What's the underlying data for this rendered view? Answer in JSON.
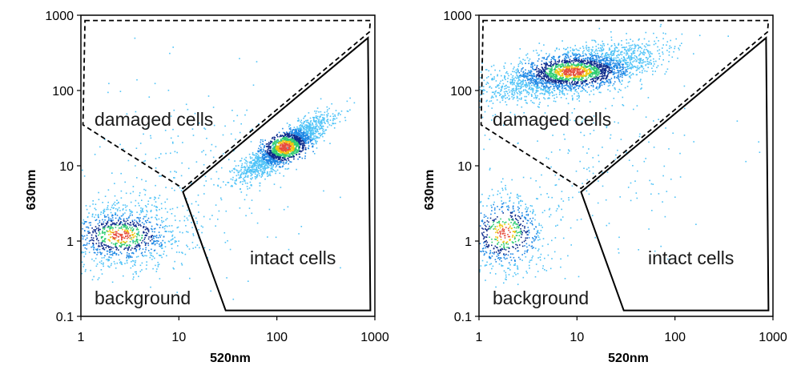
{
  "chart_data": [
    {
      "type": "scatter",
      "subtype": "density-dot-plot",
      "title": "",
      "xlabel": "520nm",
      "ylabel": "630nm",
      "xscale": "log",
      "yscale": "log",
      "xlim": [
        1,
        1000
      ],
      "ylim": [
        0.1,
        1000
      ],
      "xticks": [
        "1",
        "10",
        "100",
        "1000"
      ],
      "yticks": [
        "0.1",
        "1",
        "10",
        "100",
        "1000"
      ],
      "density_colors": [
        "#4fc3f7",
        "#1e88e5",
        "#0d2b8c",
        "#2ecc71",
        "#f1c40f",
        "#e74c3c"
      ],
      "clusters": [
        {
          "name": "intact cells population",
          "center": [
            120,
            18
          ],
          "spread_log10": [
            0.22,
            0.2
          ],
          "correlation": 0.85,
          "count": 2000
        },
        {
          "name": "background population",
          "center": [
            2.5,
            1.2
          ],
          "spread_log10": [
            0.35,
            0.22
          ],
          "correlation": 0.0,
          "count": 1100
        },
        {
          "name": "sparse scatter",
          "center": [
            12,
            8
          ],
          "spread_log10": [
            0.6,
            0.6
          ],
          "correlation": 0.0,
          "count": 260
        }
      ],
      "gates": [
        {
          "label": "damaged cells",
          "style": "dashed",
          "vertices": [
            [
              1.1,
              850
            ],
            [
              900,
              850
            ],
            [
              880,
              600
            ],
            [
              11,
              5
            ],
            [
              1.05,
              35
            ]
          ]
        },
        {
          "label": "intact cells",
          "style": "solid",
          "vertices": [
            [
              11,
              4.5
            ],
            [
              850,
              500
            ],
            [
              900,
              0.12
            ],
            [
              30,
              0.12
            ]
          ]
        },
        {
          "label": "background",
          "style": "none",
          "vertices": []
        }
      ],
      "annotations": [
        "damaged cells",
        "intact cells",
        "background"
      ]
    },
    {
      "type": "scatter",
      "subtype": "density-dot-plot",
      "title": "",
      "xlabel": "520nm",
      "ylabel": "630nm",
      "xscale": "log",
      "yscale": "log",
      "xlim": [
        1,
        1000
      ],
      "ylim": [
        0.1,
        1000
      ],
      "xticks": [
        "1",
        "10",
        "100",
        "1000"
      ],
      "yticks": [
        "0.1",
        "1",
        "10",
        "100",
        "1000"
      ],
      "density_colors": [
        "#4fc3f7",
        "#1e88e5",
        "#0d2b8c",
        "#2ecc71",
        "#f1c40f",
        "#e74c3c"
      ],
      "clusters": [
        {
          "name": "damaged cells population",
          "center": [
            9,
            180
          ],
          "spread_log10": [
            0.42,
            0.18
          ],
          "correlation": 0.6,
          "count": 2600
        },
        {
          "name": "background population",
          "center": [
            1.8,
            1.3
          ],
          "spread_log10": [
            0.25,
            0.3
          ],
          "correlation": 0.0,
          "count": 700
        },
        {
          "name": "sparse scatter",
          "center": [
            15,
            15
          ],
          "spread_log10": [
            0.6,
            0.6
          ],
          "correlation": 0.0,
          "count": 200
        }
      ],
      "gates": [
        {
          "label": "damaged cells",
          "style": "dashed",
          "vertices": [
            [
              1.1,
              850
            ],
            [
              900,
              850
            ],
            [
              880,
              600
            ],
            [
              11,
              5
            ],
            [
              1.05,
              35
            ]
          ]
        },
        {
          "label": "intact cells",
          "style": "solid",
          "vertices": [
            [
              11,
              4.5
            ],
            [
              850,
              500
            ],
            [
              900,
              0.12
            ],
            [
              30,
              0.12
            ]
          ]
        },
        {
          "label": "background",
          "style": "none",
          "vertices": []
        }
      ],
      "annotations": [
        "damaged cells",
        "intact cells",
        "background"
      ]
    }
  ]
}
